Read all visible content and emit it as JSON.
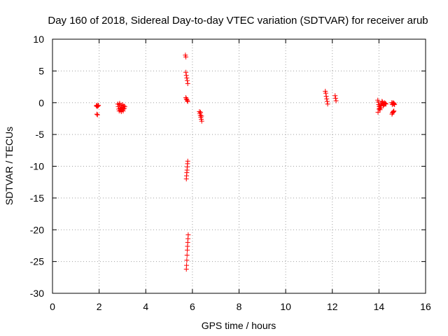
{
  "chart_data": {
    "type": "scatter",
    "title": "Day 160 of 2018, Sidereal Day-to-day VTEC variation (SDTVAR) for receiver arub",
    "xlabel": "GPS time / hours",
    "ylabel": "SDTVAR / TECUs",
    "xlim": [
      0,
      16
    ],
    "ylim": [
      -30,
      10
    ],
    "xticks": [
      0,
      2,
      4,
      6,
      8,
      10,
      12,
      14,
      16
    ],
    "yticks": [
      -30,
      -25,
      -20,
      -15,
      -10,
      -5,
      0,
      5,
      10
    ],
    "grid": true,
    "marker": "+",
    "color": "#ff0000",
    "series": [
      {
        "name": "SDTVAR",
        "points": [
          [
            1.88,
            -0.5
          ],
          [
            1.9,
            -0.4
          ],
          [
            1.92,
            -0.6
          ],
          [
            1.95,
            -0.5
          ],
          [
            1.97,
            -0.4
          ],
          [
            1.9,
            -1.8
          ],
          [
            1.93,
            -1.9
          ],
          [
            2.8,
            -0.2
          ],
          [
            2.82,
            -0.6
          ],
          [
            2.84,
            -1.0
          ],
          [
            2.86,
            -1.3
          ],
          [
            2.88,
            -0.1
          ],
          [
            2.9,
            -0.9
          ],
          [
            2.92,
            -1.2
          ],
          [
            2.94,
            -0.4
          ],
          [
            2.96,
            -0.8
          ],
          [
            2.98,
            -1.1
          ],
          [
            3.0,
            -0.3
          ],
          [
            3.02,
            -0.7
          ],
          [
            3.04,
            -1.0
          ],
          [
            3.06,
            -0.5
          ],
          [
            3.08,
            -0.9
          ],
          [
            3.1,
            -0.6
          ],
          [
            2.87,
            -0.3
          ],
          [
            2.95,
            -1.4
          ],
          [
            3.03,
            -1.3
          ],
          [
            5.7,
            7.5
          ],
          [
            5.72,
            7.2
          ],
          [
            5.72,
            4.8
          ],
          [
            5.74,
            4.3
          ],
          [
            5.76,
            3.9
          ],
          [
            5.78,
            3.5
          ],
          [
            5.8,
            3.0
          ],
          [
            5.72,
            0.8
          ],
          [
            5.74,
            0.6
          ],
          [
            5.76,
            0.5
          ],
          [
            5.78,
            0.3
          ],
          [
            5.8,
            0.2
          ],
          [
            5.8,
            -9.2
          ],
          [
            5.79,
            -9.6
          ],
          [
            5.78,
            -10.1
          ],
          [
            5.77,
            -10.6
          ],
          [
            5.76,
            -11.0
          ],
          [
            5.75,
            -11.5
          ],
          [
            5.74,
            -12.0
          ],
          [
            5.82,
            -20.8
          ],
          [
            5.81,
            -21.4
          ],
          [
            5.8,
            -22.0
          ],
          [
            5.79,
            -22.6
          ],
          [
            5.78,
            -23.2
          ],
          [
            5.77,
            -24.0
          ],
          [
            5.76,
            -24.8
          ],
          [
            5.75,
            -25.6
          ],
          [
            5.74,
            -26.2
          ],
          [
            6.3,
            -1.4
          ],
          [
            6.32,
            -1.7
          ],
          [
            6.34,
            -2.0
          ],
          [
            6.36,
            -2.3
          ],
          [
            6.38,
            -2.6
          ],
          [
            6.4,
            -2.9
          ],
          [
            6.35,
            -1.5
          ],
          [
            6.39,
            -2.1
          ],
          [
            11.7,
            1.8
          ],
          [
            11.72,
            1.5
          ],
          [
            11.74,
            1.0
          ],
          [
            11.76,
            0.6
          ],
          [
            11.78,
            0.2
          ],
          [
            11.8,
            -0.2
          ],
          [
            12.12,
            1.1
          ],
          [
            12.14,
            0.7
          ],
          [
            12.16,
            0.3
          ],
          [
            13.95,
            0.4
          ],
          [
            13.97,
            0.1
          ],
          [
            13.99,
            -0.3
          ],
          [
            14.01,
            -0.6
          ],
          [
            14.03,
            -0.9
          ],
          [
            14.05,
            -1.1
          ],
          [
            14.07,
            -0.8
          ],
          [
            14.09,
            -0.4
          ],
          [
            14.11,
            -0.1
          ],
          [
            14.13,
            0.2
          ],
          [
            14.15,
            0.1
          ],
          [
            14.17,
            -0.2
          ],
          [
            14.19,
            -0.5
          ],
          [
            14.21,
            -0.3
          ],
          [
            14.23,
            0.0
          ],
          [
            14.25,
            -0.2
          ],
          [
            14.27,
            -0.1
          ],
          [
            14.3,
            -0.2
          ],
          [
            13.96,
            -1.5
          ],
          [
            14.0,
            -1.0
          ],
          [
            14.04,
            -0.5
          ],
          [
            14.55,
            0.0
          ],
          [
            14.57,
            -0.3
          ],
          [
            14.59,
            -0.1
          ],
          [
            14.61,
            0.0
          ],
          [
            14.63,
            -0.2
          ],
          [
            14.65,
            -0.1
          ],
          [
            14.67,
            -0.3
          ],
          [
            14.56,
            -1.8
          ],
          [
            14.58,
            -1.6
          ],
          [
            14.6,
            -1.5
          ],
          [
            14.62,
            -1.4
          ],
          [
            14.64,
            -1.3
          ]
        ]
      }
    ]
  }
}
